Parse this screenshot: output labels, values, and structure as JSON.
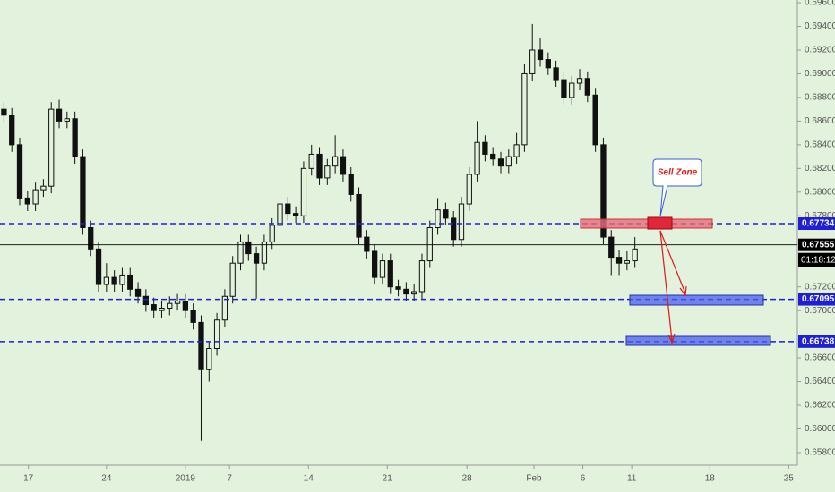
{
  "chart_data": {
    "type": "candlestick",
    "x": [
      0,
      1,
      2,
      3,
      4,
      5,
      6,
      7,
      8,
      9,
      10,
      11,
      12,
      13,
      14,
      15,
      16,
      17,
      18,
      19,
      20,
      21,
      22,
      23,
      24,
      25,
      26,
      27,
      28,
      29,
      30,
      31,
      32,
      33,
      34,
      35,
      36,
      37,
      38,
      39,
      40,
      41,
      42,
      43,
      44,
      45,
      46,
      47,
      48,
      49,
      50,
      51,
      52,
      53,
      54,
      55,
      56,
      57,
      58,
      59,
      60,
      61,
      62,
      63,
      64,
      65,
      66,
      67,
      68,
      69,
      70,
      71,
      72,
      73,
      74,
      75,
      76,
      77,
      78,
      79,
      80
    ],
    "open": [
      0.687,
      0.6865,
      0.684,
      0.6795,
      0.679,
      0.6802,
      0.6805,
      0.687,
      0.686,
      0.6862,
      0.683,
      0.677,
      0.6752,
      0.6722,
      0.6728,
      0.6722,
      0.673,
      0.6718,
      0.6712,
      0.6705,
      0.67,
      0.6702,
      0.6706,
      0.6708,
      0.67,
      0.669,
      0.665,
      0.6668,
      0.6692,
      0.6712,
      0.674,
      0.6758,
      0.6748,
      0.674,
      0.6758,
      0.6772,
      0.679,
      0.6782,
      0.678,
      0.682,
      0.6832,
      0.6812,
      0.6822,
      0.683,
      0.6815,
      0.6798,
      0.6762,
      0.675,
      0.6728,
      0.6742,
      0.672,
      0.6718,
      0.6714,
      0.6716,
      0.6742,
      0.677,
      0.6785,
      0.6778,
      0.676,
      0.679,
      0.6815,
      0.6842,
      0.6832,
      0.6828,
      0.6822,
      0.683,
      0.684,
      0.69,
      0.692,
      0.6912,
      0.6905,
      0.6895,
      0.688,
      0.6892,
      0.6896,
      0.6882,
      0.684,
      0.6762,
      0.6745,
      0.674,
      0.6742
    ],
    "high": [
      0.6876,
      0.6871,
      0.6846,
      0.6801,
      0.6808,
      0.6811,
      0.6876,
      0.6878,
      0.6868,
      0.6868,
      0.6836,
      0.6776,
      0.6758,
      0.674,
      0.6734,
      0.6736,
      0.6736,
      0.6724,
      0.6718,
      0.6711,
      0.6708,
      0.6712,
      0.6714,
      0.6714,
      0.6706,
      0.6696,
      0.6674,
      0.6698,
      0.6718,
      0.6746,
      0.6764,
      0.6764,
      0.6754,
      0.6764,
      0.6778,
      0.6796,
      0.6796,
      0.6788,
      0.6826,
      0.684,
      0.6838,
      0.6828,
      0.6848,
      0.6836,
      0.6821,
      0.6804,
      0.6768,
      0.6756,
      0.6748,
      0.6748,
      0.6726,
      0.6724,
      0.6722,
      0.6748,
      0.6776,
      0.6795,
      0.6791,
      0.6784,
      0.6796,
      0.6821,
      0.686,
      0.6848,
      0.6838,
      0.6834,
      0.6836,
      0.685,
      0.6908,
      0.6942,
      0.693,
      0.6918,
      0.6911,
      0.6901,
      0.6898,
      0.6904,
      0.6902,
      0.6888,
      0.6846,
      0.6768,
      0.6751,
      0.675,
      0.6762
    ],
    "low": [
      0.6859,
      0.6834,
      0.6789,
      0.6784,
      0.6784,
      0.6796,
      0.6799,
      0.6854,
      0.6854,
      0.6824,
      0.6764,
      0.6746,
      0.6716,
      0.6716,
      0.6716,
      0.6716,
      0.6712,
      0.6706,
      0.6699,
      0.6694,
      0.6694,
      0.6696,
      0.67,
      0.6694,
      0.6684,
      0.659,
      0.664,
      0.6662,
      0.6686,
      0.6706,
      0.6734,
      0.6742,
      0.671,
      0.6734,
      0.6752,
      0.6766,
      0.6776,
      0.6774,
      0.6774,
      0.6814,
      0.6806,
      0.6806,
      0.6816,
      0.6809,
      0.6792,
      0.6756,
      0.6744,
      0.6722,
      0.6722,
      0.6714,
      0.6712,
      0.6708,
      0.6708,
      0.671,
      0.6736,
      0.6764,
      0.6772,
      0.6754,
      0.6754,
      0.6784,
      0.6809,
      0.6826,
      0.6822,
      0.6816,
      0.6816,
      0.6824,
      0.6834,
      0.6894,
      0.6906,
      0.6899,
      0.6889,
      0.6874,
      0.6874,
      0.6886,
      0.6876,
      0.6834,
      0.6756,
      0.673,
      0.673,
      0.6734,
      0.6736
    ],
    "close": [
      0.6865,
      0.684,
      0.6795,
      0.679,
      0.6802,
      0.6805,
      0.687,
      0.686,
      0.6862,
      0.683,
      0.677,
      0.6752,
      0.6722,
      0.6728,
      0.6722,
      0.673,
      0.6718,
      0.6712,
      0.6705,
      0.67,
      0.6702,
      0.6706,
      0.6708,
      0.67,
      0.669,
      0.665,
      0.6668,
      0.6692,
      0.6712,
      0.674,
      0.6758,
      0.6748,
      0.674,
      0.6758,
      0.6772,
      0.679,
      0.6782,
      0.678,
      0.682,
      0.6832,
      0.6812,
      0.6822,
      0.683,
      0.6815,
      0.6798,
      0.6762,
      0.675,
      0.6728,
      0.6742,
      0.672,
      0.6718,
      0.6714,
      0.6716,
      0.6742,
      0.677,
      0.6785,
      0.6778,
      0.676,
      0.679,
      0.6815,
      0.6842,
      0.6832,
      0.6828,
      0.6822,
      0.683,
      0.684,
      0.69,
      0.692,
      0.6912,
      0.6905,
      0.6895,
      0.688,
      0.6892,
      0.6896,
      0.6882,
      0.684,
      0.6762,
      0.6745,
      0.674,
      0.6742,
      0.6752
    ],
    "color": "#111111",
    "xlim": [
      -0.5,
      100.6
    ],
    "xticks": [
      {
        "value": 3.1,
        "label": "17"
      },
      {
        "value": 13.0,
        "label": "24"
      },
      {
        "value": 23.0,
        "label": "2019"
      },
      {
        "value": 28.6,
        "label": "7"
      },
      {
        "value": 38.6,
        "label": "14"
      },
      {
        "value": 48.6,
        "label": "21"
      },
      {
        "value": 58.7,
        "label": "28"
      },
      {
        "value": 67.2,
        "label": "Feb"
      },
      {
        "value": 73.4,
        "label": "6"
      },
      {
        "value": 79.6,
        "label": "11"
      },
      {
        "value": 89.5,
        "label": "18"
      },
      {
        "value": 99.5,
        "label": "25"
      }
    ],
    "ylim": [
      0.65694,
      0.69623
    ],
    "yticks": [
      {
        "value": 0.696,
        "label": "0.69600"
      },
      {
        "value": 0.694,
        "label": "0.69400"
      },
      {
        "value": 0.692,
        "label": "0.69200"
      },
      {
        "value": 0.69,
        "label": "0.69000"
      },
      {
        "value": 0.688,
        "label": "0.68800"
      },
      {
        "value": 0.686,
        "label": "0.68600"
      },
      {
        "value": 0.684,
        "label": "0.68400"
      },
      {
        "value": 0.682,
        "label": "0.68200"
      },
      {
        "value": 0.68,
        "label": "0.68000"
      },
      {
        "value": 0.678,
        "label": "0.67800"
      },
      {
        "value": 0.672,
        "label": "0.67200"
      },
      {
        "value": 0.67,
        "label": "0.67000"
      },
      {
        "value": 0.666,
        "label": "0.66600"
      },
      {
        "value": 0.664,
        "label": "0.66400"
      },
      {
        "value": 0.662,
        "label": "0.66200"
      },
      {
        "value": 0.66,
        "label": "0.66000"
      },
      {
        "value": 0.658,
        "label": "0.65800"
      }
    ],
    "levels": [
      {
        "value": 0.67734,
        "color": "#1f1fd6",
        "dashed": true
      },
      {
        "value": 0.67555,
        "color": "#000000",
        "dashed": false
      },
      {
        "value": 0.67095,
        "color": "#1f1fd6",
        "dashed": true
      },
      {
        "value": 0.66738,
        "color": "#1f1fd6",
        "dashed": true
      }
    ],
    "countdown": "01:18:12",
    "annotation": "Sell Zone"
  }
}
